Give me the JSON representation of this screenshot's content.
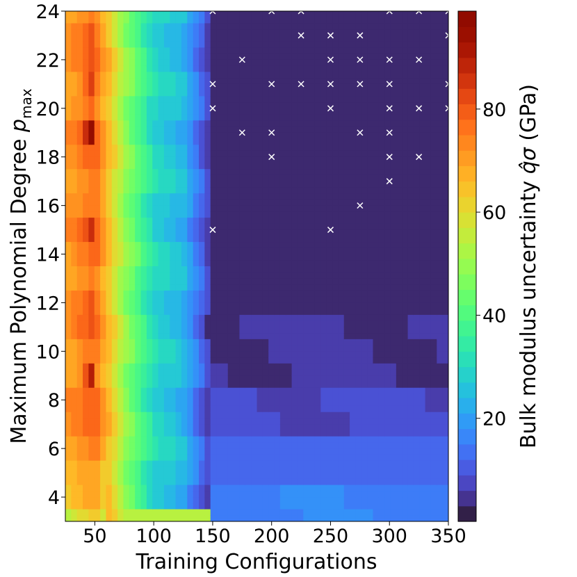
{
  "chart_data": {
    "type": "heatmap",
    "xlabel": "Training Configurations",
    "ylabel": "Maximum Polynomial Degree p_max",
    "ylabel_parts": {
      "main": "Maximum Polynomial Degree ",
      "var": "p",
      "sub": "max"
    },
    "colorbar_label": "Bulk modulus uncertainty q̂σ (GPa)",
    "colorbar_label_parts": {
      "main": "Bulk modulus uncertainty ",
      "expr": "q̂σ",
      "unit": " (GPa)"
    },
    "xlim": [
      25,
      350
    ],
    "ylim": [
      3,
      24
    ],
    "x_ticks": [
      50,
      100,
      150,
      200,
      250,
      300,
      350
    ],
    "x_tick_labels": [
      "50",
      "100",
      "150",
      "200",
      "250",
      "300",
      "350"
    ],
    "y_ticks": [
      4,
      6,
      8,
      10,
      12,
      14,
      16,
      18,
      20,
      22,
      24
    ],
    "y_tick_labels": [
      "4",
      "6",
      "8",
      "10",
      "12",
      "14",
      "16",
      "18",
      "20",
      "22",
      "24"
    ],
    "colorbar_range": [
      0,
      99
    ],
    "colorbar_ticks": [
      20,
      40,
      60,
      80
    ],
    "colorbar_tick_labels": [
      "20",
      "40",
      "60",
      "80"
    ],
    "colormap": "turbo",
    "x": [
      25,
      50,
      75,
      100,
      125,
      150,
      175,
      200,
      225,
      250,
      275,
      300,
      325,
      350
    ],
    "y": [
      3,
      4,
      5,
      6,
      7,
      8,
      9,
      10,
      11,
      12,
      13,
      14,
      15,
      16,
      17,
      18,
      19,
      20,
      21,
      22,
      23,
      24
    ],
    "x_markers": [
      [
        150,
        15
      ],
      [
        250,
        15
      ],
      [
        275,
        16
      ],
      [
        300,
        17
      ],
      [
        200,
        18
      ],
      [
        300,
        18
      ],
      [
        325,
        18
      ],
      [
        175,
        19
      ],
      [
        200,
        19
      ],
      [
        275,
        19
      ],
      [
        300,
        19
      ],
      [
        150,
        20
      ],
      [
        250,
        20
      ],
      [
        300,
        20
      ],
      [
        325,
        20
      ],
      [
        350,
        20
      ],
      [
        150,
        21
      ],
      [
        200,
        21
      ],
      [
        225,
        21
      ],
      [
        250,
        21
      ],
      [
        275,
        21
      ],
      [
        300,
        21
      ],
      [
        350,
        21
      ],
      [
        175,
        22
      ],
      [
        250,
        22
      ],
      [
        275,
        22
      ],
      [
        300,
        22
      ],
      [
        325,
        22
      ],
      [
        225,
        23
      ],
      [
        250,
        23
      ],
      [
        275,
        23
      ],
      [
        350,
        23
      ],
      [
        150,
        24
      ],
      [
        200,
        24
      ],
      [
        225,
        24
      ],
      [
        300,
        24
      ],
      [
        325,
        24
      ],
      [
        350,
        24
      ]
    ],
    "marker_color": "#ffffff"
  }
}
